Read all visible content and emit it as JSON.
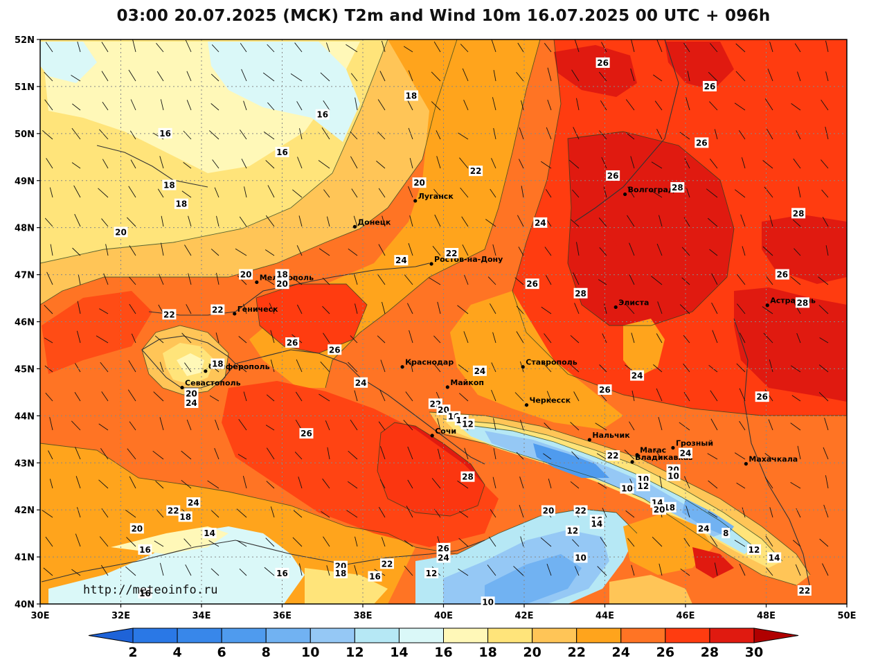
{
  "title": "03:00 20.07.2025 (МСК) T2m and Wind 10m 16.07.2025 00 UTC + 096h",
  "credit": "http://meteoinfo.ru",
  "axes": {
    "lat_labels": [
      "52N",
      "51N",
      "50N",
      "49N",
      "48N",
      "47N",
      "46N",
      "45N",
      "44N",
      "43N",
      "42N",
      "41N",
      "40N"
    ],
    "lon_labels": [
      "30E",
      "32E",
      "34E",
      "36E",
      "38E",
      "40E",
      "42E",
      "44E",
      "46E",
      "48E",
      "50E"
    ]
  },
  "colorbar": {
    "ticks": [
      "2",
      "4",
      "6",
      "8",
      "10",
      "12",
      "14",
      "16",
      "18",
      "20",
      "22",
      "24",
      "26",
      "28",
      "30"
    ],
    "colors": [
      "#2a78e6",
      "#3887ea",
      "#4f9bee",
      "#71b2f2",
      "#95c8f5",
      "#b6e8f5",
      "#daf8f8",
      "#fff8b8",
      "#ffe47a",
      "#ffc557",
      "#ffa41c",
      "#ff7424",
      "#ff3c10",
      "#e01a10",
      "#c00808"
    ],
    "under_color": "#1e63d8",
    "over_color": "#b00000"
  },
  "cities": [
    {
      "name": "Луганск",
      "lon": 39.3,
      "lat": 48.57
    },
    {
      "name": "Волгоград",
      "lon": 44.5,
      "lat": 48.71
    },
    {
      "name": "Донецк",
      "lon": 37.8,
      "lat": 48.02
    },
    {
      "name": "Ростов-на-Дону",
      "lon": 39.7,
      "lat": 47.23
    },
    {
      "name": "Мелитополь",
      "lon": 35.37,
      "lat": 46.84
    },
    {
      "name": "Геническ",
      "lon": 34.82,
      "lat": 46.17
    },
    {
      "name": "Элиста",
      "lon": 44.27,
      "lat": 46.31
    },
    {
      "name": "Астрахань",
      "lon": 48.03,
      "lat": 46.35
    },
    {
      "name": "Краснодар",
      "lon": 38.98,
      "lat": 45.04
    },
    {
      "name": "Ставрополь",
      "lon": 41.97,
      "lat": 45.04
    },
    {
      "name": "Симферополь",
      "lon": 34.1,
      "lat": 44.95
    },
    {
      "name": "Майкоп",
      "lon": 40.1,
      "lat": 44.61
    },
    {
      "name": "Севастополь",
      "lon": 33.52,
      "lat": 44.6
    },
    {
      "name": "Черкесск",
      "lon": 42.06,
      "lat": 44.23
    },
    {
      "name": "Сочи",
      "lon": 39.72,
      "lat": 43.58
    },
    {
      "name": "Нальчик",
      "lon": 43.62,
      "lat": 43.49
    },
    {
      "name": "Грозный",
      "lon": 45.69,
      "lat": 43.32
    },
    {
      "name": "Магас",
      "lon": 44.8,
      "lat": 43.17
    },
    {
      "name": "Владикавказ",
      "lon": 44.68,
      "lat": 43.02
    },
    {
      "name": "Махачкала",
      "lon": 47.5,
      "lat": 42.98
    }
  ],
  "contour_labels": [
    {
      "t": "26",
      "lon": 43.95,
      "lat": 51.5
    },
    {
      "t": "26",
      "lon": 46.6,
      "lat": 51.0
    },
    {
      "t": "18",
      "lon": 39.2,
      "lat": 50.8
    },
    {
      "t": "16",
      "lon": 37.0,
      "lat": 50.4
    },
    {
      "t": "16",
      "lon": 33.1,
      "lat": 50.0
    },
    {
      "t": "16",
      "lon": 36.0,
      "lat": 49.6
    },
    {
      "t": "26",
      "lon": 46.4,
      "lat": 49.8
    },
    {
      "t": "26",
      "lon": 44.2,
      "lat": 49.1
    },
    {
      "t": "22",
      "lon": 40.8,
      "lat": 49.2
    },
    {
      "t": "20",
      "lon": 39.4,
      "lat": 48.95
    },
    {
      "t": "18",
      "lon": 33.2,
      "lat": 48.9
    },
    {
      "t": "18",
      "lon": 33.5,
      "lat": 48.5
    },
    {
      "t": "28",
      "lon": 45.8,
      "lat": 48.85
    },
    {
      "t": "28",
      "lon": 48.8,
      "lat": 48.3
    },
    {
      "t": "24",
      "lon": 42.4,
      "lat": 48.1
    },
    {
      "t": "20",
      "lon": 32.0,
      "lat": 47.9
    },
    {
      "t": "22",
      "lon": 40.2,
      "lat": 47.45
    },
    {
      "t": "24",
      "lon": 38.95,
      "lat": 47.3
    },
    {
      "t": "20",
      "lon": 35.1,
      "lat": 47.0
    },
    {
      "t": "18",
      "lon": 36.0,
      "lat": 47.0
    },
    {
      "t": "20",
      "lon": 36.0,
      "lat": 46.8
    },
    {
      "t": "26",
      "lon": 48.4,
      "lat": 47.0
    },
    {
      "t": "26",
      "lon": 42.2,
      "lat": 46.8
    },
    {
      "t": "28",
      "lon": 43.4,
      "lat": 46.6
    },
    {
      "t": "28",
      "lon": 48.9,
      "lat": 46.4
    },
    {
      "t": "22",
      "lon": 34.4,
      "lat": 46.25
    },
    {
      "t": "22",
      "lon": 33.2,
      "lat": 46.15
    },
    {
      "t": "26",
      "lon": 36.25,
      "lat": 45.55
    },
    {
      "t": "26",
      "lon": 37.3,
      "lat": 45.4
    },
    {
      "t": "18",
      "lon": 34.4,
      "lat": 45.1
    },
    {
      "t": "24",
      "lon": 40.9,
      "lat": 44.95
    },
    {
      "t": "24",
      "lon": 44.8,
      "lat": 44.85
    },
    {
      "t": "24",
      "lon": 37.95,
      "lat": 44.7
    },
    {
      "t": "26",
      "lon": 44.0,
      "lat": 44.55
    },
    {
      "t": "20",
      "lon": 33.75,
      "lat": 44.47
    },
    {
      "t": "26",
      "lon": 47.9,
      "lat": 44.4
    },
    {
      "t": "24",
      "lon": 33.75,
      "lat": 44.27
    },
    {
      "t": "22",
      "lon": 39.8,
      "lat": 44.25
    },
    {
      "t": "20",
      "lon": 40.0,
      "lat": 44.12
    },
    {
      "t": "16",
      "lon": 40.25,
      "lat": 43.98
    },
    {
      "t": "14",
      "lon": 40.45,
      "lat": 43.9
    },
    {
      "t": "12",
      "lon": 40.6,
      "lat": 43.82
    },
    {
      "t": "26",
      "lon": 36.6,
      "lat": 43.62
    },
    {
      "t": "22",
      "lon": 44.2,
      "lat": 43.15
    },
    {
      "t": "24",
      "lon": 46.0,
      "lat": 43.2
    },
    {
      "t": "20",
      "lon": 45.7,
      "lat": 42.85
    },
    {
      "t": "10",
      "lon": 45.7,
      "lat": 42.72
    },
    {
      "t": "28",
      "lon": 40.6,
      "lat": 42.7
    },
    {
      "t": "10",
      "lon": 44.95,
      "lat": 42.65
    },
    {
      "t": "12",
      "lon": 44.95,
      "lat": 42.5
    },
    {
      "t": "10",
      "lon": 44.55,
      "lat": 42.45
    },
    {
      "t": "14",
      "lon": 45.3,
      "lat": 42.15
    },
    {
      "t": "18",
      "lon": 45.6,
      "lat": 42.05
    },
    {
      "t": "20",
      "lon": 45.35,
      "lat": 42.0
    },
    {
      "t": "24",
      "lon": 33.8,
      "lat": 42.15
    },
    {
      "t": "22",
      "lon": 33.3,
      "lat": 41.98
    },
    {
      "t": "18",
      "lon": 33.6,
      "lat": 41.85
    },
    {
      "t": "20",
      "lon": 42.6,
      "lat": 41.98
    },
    {
      "t": "22",
      "lon": 43.4,
      "lat": 41.98
    },
    {
      "t": "16",
      "lon": 43.8,
      "lat": 41.78
    },
    {
      "t": "14",
      "lon": 43.8,
      "lat": 41.7
    },
    {
      "t": "24",
      "lon": 46.45,
      "lat": 41.6
    },
    {
      "t": "12",
      "lon": 43.2,
      "lat": 41.55
    },
    {
      "t": "8",
      "lon": 47.0,
      "lat": 41.5
    },
    {
      "t": "20",
      "lon": 32.4,
      "lat": 41.6
    },
    {
      "t": "14",
      "lon": 34.2,
      "lat": 41.5
    },
    {
      "t": "16",
      "lon": 32.6,
      "lat": 41.15
    },
    {
      "t": "26",
      "lon": 40.0,
      "lat": 41.18
    },
    {
      "t": "12",
      "lon": 47.7,
      "lat": 41.15
    },
    {
      "t": "24",
      "lon": 40.0,
      "lat": 40.98
    },
    {
      "t": "10",
      "lon": 43.4,
      "lat": 40.98
    },
    {
      "t": "14",
      "lon": 48.2,
      "lat": 40.98
    },
    {
      "t": "22",
      "lon": 38.6,
      "lat": 40.85
    },
    {
      "t": "20",
      "lon": 37.45,
      "lat": 40.8
    },
    {
      "t": "18",
      "lon": 37.45,
      "lat": 40.65
    },
    {
      "t": "16",
      "lon": 38.3,
      "lat": 40.58
    },
    {
      "t": "12",
      "lon": 39.7,
      "lat": 40.65
    },
    {
      "t": "16",
      "lon": 36.0,
      "lat": 40.65
    },
    {
      "t": "16",
      "lon": 32.6,
      "lat": 40.22
    },
    {
      "t": "10",
      "lon": 41.1,
      "lat": 40.04
    },
    {
      "t": "22",
      "lon": 48.95,
      "lat": 40.28
    }
  ]
}
